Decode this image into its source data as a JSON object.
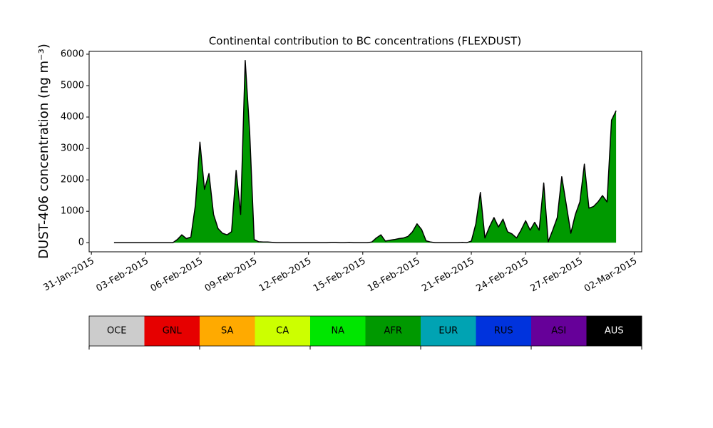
{
  "chart_data": {
    "type": "area",
    "title": "Continental contribution to BC concentrations (FLEXDUST)",
    "y_label": "DUST-406 concentration (ng m⁻³)",
    "x": [
      "2015-02-01T06",
      "2015-02-01T12",
      "2015-02-01T18",
      "2015-02-02T00",
      "2015-02-02T06",
      "2015-02-02T12",
      "2015-02-02T18",
      "2015-02-03T00",
      "2015-02-03T06",
      "2015-02-03T12",
      "2015-02-03T18",
      "2015-02-04T00",
      "2015-02-04T06",
      "2015-02-04T12",
      "2015-02-04T18",
      "2015-02-05T00",
      "2015-02-05T06",
      "2015-02-05T12",
      "2015-02-05T18",
      "2015-02-06T00",
      "2015-02-06T06",
      "2015-02-06T12",
      "2015-02-06T18",
      "2015-02-07T00",
      "2015-02-07T06",
      "2015-02-07T12",
      "2015-02-07T18",
      "2015-02-08T00",
      "2015-02-08T06",
      "2015-02-08T12",
      "2015-02-08T18",
      "2015-02-09T00",
      "2015-02-09T06",
      "2015-02-09T12",
      "2015-02-09T18",
      "2015-02-10T00",
      "2015-02-10T06",
      "2015-02-10T12",
      "2015-02-10T18",
      "2015-02-11T00",
      "2015-02-11T06",
      "2015-02-11T12",
      "2015-02-11T18",
      "2015-02-12T00",
      "2015-02-12T06",
      "2015-02-12T12",
      "2015-02-12T18",
      "2015-02-13T00",
      "2015-02-13T06",
      "2015-02-13T12",
      "2015-02-13T18",
      "2015-02-14T00",
      "2015-02-14T06",
      "2015-02-14T12",
      "2015-02-14T18",
      "2015-02-15T00",
      "2015-02-15T06",
      "2015-02-15T12",
      "2015-02-15T18",
      "2015-02-16T00",
      "2015-02-16T06",
      "2015-02-16T12",
      "2015-02-16T18",
      "2015-02-17T00",
      "2015-02-17T06",
      "2015-02-17T12",
      "2015-02-17T18",
      "2015-02-18T00",
      "2015-02-18T06",
      "2015-02-18T12",
      "2015-02-18T18",
      "2015-02-19T00",
      "2015-02-19T06",
      "2015-02-19T12",
      "2015-02-19T18",
      "2015-02-20T00",
      "2015-02-20T06",
      "2015-02-20T12",
      "2015-02-20T18",
      "2015-02-21T00",
      "2015-02-21T06",
      "2015-02-21T12",
      "2015-02-21T18",
      "2015-02-22T00",
      "2015-02-22T06",
      "2015-02-22T12",
      "2015-02-22T18",
      "2015-02-23T00",
      "2015-02-23T06",
      "2015-02-23T12",
      "2015-02-23T18",
      "2015-02-24T00",
      "2015-02-24T06",
      "2015-02-24T12",
      "2015-02-24T18",
      "2015-02-25T00",
      "2015-02-25T06",
      "2015-02-25T12",
      "2015-02-25T18",
      "2015-02-26T00",
      "2015-02-26T06",
      "2015-02-26T12",
      "2015-02-26T18",
      "2015-02-27T00",
      "2015-02-27T06",
      "2015-02-27T12",
      "2015-02-27T18",
      "2015-02-28T00",
      "2015-02-28T06",
      "2015-02-28T12",
      "2015-02-28T18",
      "2015-03-01T00"
    ],
    "series": [
      {
        "name": "AFR",
        "color": "#009900",
        "outline": "#000000",
        "values": [
          0,
          0,
          0,
          0,
          0,
          0,
          0,
          0,
          0,
          0,
          0,
          0,
          0,
          0,
          100,
          250,
          130,
          180,
          1200,
          3200,
          1700,
          2200,
          900,
          450,
          300,
          250,
          350,
          2300,
          900,
          5800,
          3500,
          100,
          30,
          20,
          20,
          10,
          0,
          0,
          0,
          0,
          0,
          0,
          0,
          0,
          0,
          0,
          0,
          0,
          10,
          10,
          0,
          0,
          10,
          0,
          0,
          0,
          0,
          20,
          150,
          250,
          50,
          80,
          100,
          130,
          150,
          200,
          350,
          600,
          420,
          60,
          20,
          0,
          0,
          0,
          0,
          0,
          0,
          10,
          0,
          50,
          600,
          1600,
          150,
          500,
          800,
          500,
          750,
          350,
          280,
          150,
          400,
          700,
          400,
          650,
          400,
          1900,
          30,
          400,
          800,
          2100,
          1200,
          300,
          900,
          1300,
          2500,
          1100,
          1150,
          1300,
          1500,
          1300,
          3900,
          4200
        ]
      }
    ],
    "xlim": [
      "2015-01-30T21",
      "2015-03-02T10"
    ],
    "xticks": [
      {
        "value": "2015-01-31",
        "label": "31-Jan-2015"
      },
      {
        "value": "2015-02-03",
        "label": "03-Feb-2015"
      },
      {
        "value": "2015-02-06",
        "label": "06-Feb-2015"
      },
      {
        "value": "2015-02-09",
        "label": "09-Feb-2015"
      },
      {
        "value": "2015-02-12",
        "label": "12-Feb-2015"
      },
      {
        "value": "2015-02-15",
        "label": "15-Feb-2015"
      },
      {
        "value": "2015-02-18",
        "label": "18-Feb-2015"
      },
      {
        "value": "2015-02-21",
        "label": "21-Feb-2015"
      },
      {
        "value": "2015-02-24",
        "label": "24-Feb-2015"
      },
      {
        "value": "2015-02-27",
        "label": "27-Feb-2015"
      },
      {
        "value": "2015-03-02",
        "label": "02-Mar-2015"
      }
    ],
    "ylim": [
      -290,
      6090
    ],
    "yticks": [
      0,
      1000,
      2000,
      3000,
      4000,
      5000,
      6000
    ],
    "legend": {
      "labels": [
        "OCE",
        "GNL",
        "SA",
        "CA",
        "NA",
        "AFR",
        "EUR",
        "RUS",
        "ASI",
        "AUS"
      ],
      "colors": [
        "#cccccc",
        "#e60000",
        "#ffaa00",
        "#ccff00",
        "#00e600",
        "#009900",
        "#00a3b3",
        "#0033dd",
        "#660099",
        "#000000"
      ]
    }
  }
}
